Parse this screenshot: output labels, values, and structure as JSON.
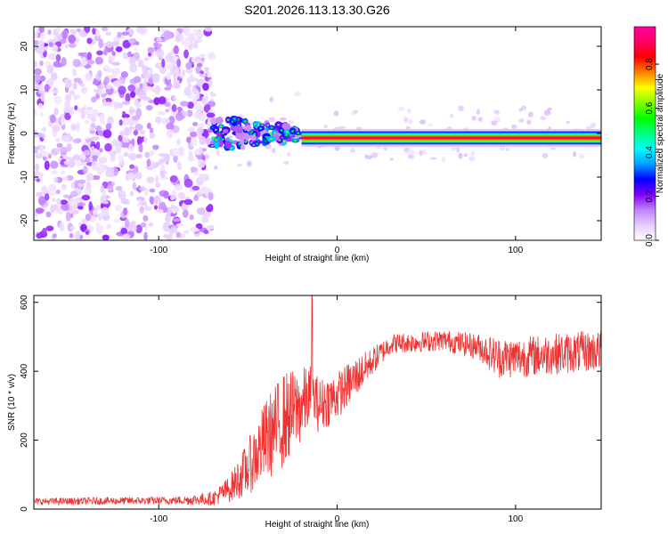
{
  "figure": {
    "title": "S201.2026.113.13.30.G26"
  },
  "chart_data": [
    {
      "type": "heatmap",
      "xlabel": "Height of straight line (km)",
      "ylabel": "Frequency (Hz)",
      "xlim": [
        -170,
        148
      ],
      "ylim": [
        -24.5,
        24.5
      ],
      "xticks": [
        -100,
        0,
        100
      ],
      "yticks": [
        -20,
        -10,
        0,
        10,
        20
      ],
      "colorbar": {
        "label": "Normalized spectral amplitude",
        "range": [
          0,
          0.97
        ],
        "ticks": [
          "0.0",
          "0.2",
          "0.4",
          "0.6",
          "0.8"
        ],
        "tick_values": [
          0,
          0.2,
          0.4,
          0.6,
          0.8
        ],
        "colors": [
          "#ffffff",
          "#e6ccff",
          "#c080ff",
          "#8000ff",
          "#0000ff",
          "#00a0ff",
          "#00ffff",
          "#00ff80",
          "#00ff00",
          "#80ff00",
          "#ffff00",
          "#ff8000",
          "#ff0000",
          "#ff0060",
          "#ff00a0"
        ]
      },
      "features": [
        {
          "x_range": [
            -170,
            -70
          ],
          "freq_range": [
            -24,
            24
          ],
          "amplitude": 0.1,
          "desc": "scattered noise"
        },
        {
          "x_range": [
            -70,
            -20
          ],
          "freq_range": [
            -8,
            8
          ],
          "amplitude": 0.35
        },
        {
          "x_range": [
            -20,
            148
          ],
          "freq_center": -1,
          "freq_halfwidth": 2,
          "amplitude": 0.9
        }
      ]
    },
    {
      "type": "line",
      "xlabel": "Height of straight line (km)",
      "ylabel": "SNR (10 * v/v)",
      "xlim": [
        -170,
        148
      ],
      "ylim": [
        0,
        620
      ],
      "xticks": [
        -100,
        0,
        100
      ],
      "yticks": [
        0,
        200,
        400,
        600
      ],
      "series": [
        {
          "color": "#ee3333",
          "envelope_x": [
            -170,
            -90,
            -70,
            -60,
            -50,
            -40,
            -30,
            -20,
            -15,
            -10,
            0,
            10,
            20,
            30,
            60,
            80,
            90,
            100,
            120,
            148
          ],
          "envelope_mean": [
            22,
            25,
            30,
            60,
            120,
            200,
            260,
            300,
            330,
            300,
            330,
            380,
            430,
            480,
            490,
            470,
            440,
            440,
            450,
            460
          ],
          "envelope_spread": [
            10,
            12,
            20,
            40,
            80,
            120,
            140,
            110,
            90,
            80,
            70,
            60,
            40,
            30,
            30,
            40,
            60,
            60,
            60,
            60
          ],
          "peak": {
            "x": -14,
            "y": 620
          }
        }
      ]
    }
  ]
}
